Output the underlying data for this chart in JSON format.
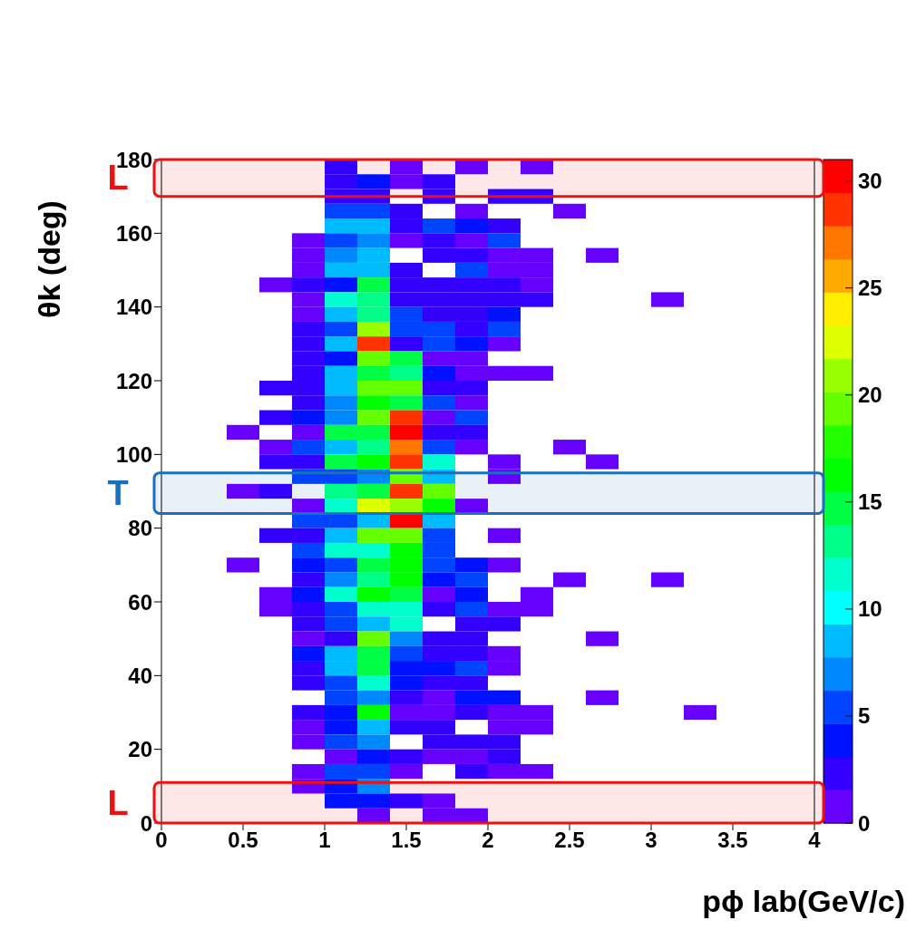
{
  "chart_data": {
    "type": "heatmap",
    "xlabel": "pϕ lab(GeV/c)",
    "ylabel": "θk (deg)",
    "xlim": [
      0,
      4
    ],
    "xticks": [
      0,
      {
        "value": 0.5,
        "label": "0.5"
      },
      1,
      {
        "value": 1.5,
        "label": "1.5"
      },
      2,
      {
        "value": 2.5,
        "label": "2.5"
      },
      3,
      {
        "value": 3.5,
        "label": "3.5"
      },
      4
    ],
    "ylim": [
      0,
      180
    ],
    "yticks": [
      0,
      20,
      40,
      60,
      80,
      100,
      120,
      140,
      160,
      180
    ],
    "clim": [
      0,
      31
    ],
    "cticks": [
      0,
      5,
      10,
      15,
      20,
      25,
      30
    ],
    "colors": [
      "#6600ff",
      "#3300ff",
      "#0011ff",
      "#0044ff",
      "#0088ff",
      "#00bbff",
      "#00ffff",
      "#00ffcc",
      "#00ff88",
      "#00ff44",
      "#00ff00",
      "#22ff00",
      "#66ff00",
      "#99ff00",
      "#ddff00",
      "#ffee00",
      "#ffaa00",
      "#ff7700",
      "#ff3300",
      "#ff0000"
    ],
    "bands": [
      {
        "axis": "y",
        "from": 170,
        "to": 180,
        "label": "L",
        "color": "#ee1111"
      },
      {
        "axis": "y",
        "from": 84,
        "to": 95,
        "label": "T",
        "color": "#1a6fbf"
      },
      {
        "axis": "y",
        "from": 0,
        "to": 11,
        "label": "L",
        "color": "#ee1111"
      }
    ],
    "cells": [
      [
        null,
        null,
        null,
        null,
        null,
        2,
        null,
        1,
        null,
        1,
        null,
        1,
        null,
        null,
        null,
        null,
        null,
        null,
        null,
        null
      ],
      [
        null,
        null,
        null,
        null,
        null,
        2,
        4,
        1,
        2,
        null,
        null,
        null,
        null,
        null,
        null,
        null,
        null,
        null,
        null,
        null
      ],
      [
        null,
        null,
        null,
        null,
        null,
        2,
        2,
        null,
        2,
        null,
        2,
        2,
        null,
        null,
        null,
        null,
        null,
        null,
        null,
        null
      ],
      [
        null,
        null,
        null,
        null,
        null,
        5,
        5,
        2,
        null,
        1,
        null,
        null,
        1,
        null,
        null,
        null,
        null,
        null,
        null,
        null
      ],
      [
        null,
        null,
        null,
        null,
        null,
        8,
        8,
        2,
        5,
        4,
        2,
        null,
        null,
        null,
        null,
        null,
        null,
        null,
        null,
        null
      ],
      [
        null,
        null,
        null,
        null,
        1,
        5,
        7,
        1,
        2,
        1,
        5,
        null,
        null,
        null,
        null,
        null,
        null,
        null,
        null,
        null
      ],
      [
        null,
        null,
        null,
        null,
        1,
        7,
        8,
        null,
        2,
        2,
        1,
        1,
        null,
        1,
        null,
        null,
        null,
        null,
        null,
        null
      ],
      [
        null,
        null,
        null,
        null,
        1,
        8,
        8,
        2,
        null,
        5,
        1,
        1,
        null,
        null,
        null,
        null,
        null,
        null,
        null,
        null
      ],
      [
        null,
        null,
        null,
        1,
        2,
        4,
        14,
        2,
        2,
        2,
        2,
        1,
        null,
        null,
        null,
        null,
        null,
        null,
        null,
        null
      ],
      [
        null,
        null,
        null,
        null,
        1,
        11,
        13,
        2,
        2,
        2,
        2,
        2,
        null,
        null,
        null,
        1,
        null,
        null,
        null,
        null
      ],
      [
        null,
        null,
        null,
        null,
        1,
        8,
        13,
        5,
        2,
        2,
        4,
        null,
        null,
        null,
        null,
        null,
        null,
        null,
        null,
        null
      ],
      [
        null,
        null,
        null,
        null,
        2,
        5,
        21,
        5,
        5,
        2,
        5,
        null,
        null,
        null,
        null,
        null,
        null,
        null,
        null,
        null
      ],
      [
        null,
        null,
        null,
        null,
        2,
        8,
        28,
        2,
        5,
        4,
        1,
        null,
        null,
        null,
        null,
        null,
        null,
        null,
        null,
        null
      ],
      [
        null,
        null,
        null,
        null,
        2,
        4,
        19,
        14,
        1,
        1,
        null,
        null,
        null,
        null,
        null,
        null,
        null,
        null,
        null,
        null
      ],
      [
        null,
        null,
        null,
        null,
        2,
        8,
        14,
        13,
        4,
        1,
        1,
        1,
        null,
        null,
        null,
        null,
        null,
        null,
        null,
        null
      ],
      [
        null,
        null,
        null,
        2,
        2,
        8,
        19,
        19,
        2,
        2,
        null,
        null,
        null,
        null,
        null,
        null,
        null,
        null,
        null,
        null
      ],
      [
        null,
        null,
        null,
        null,
        2,
        7,
        16,
        14,
        5,
        1,
        null,
        null,
        null,
        null,
        null,
        null,
        null,
        null,
        null,
        null
      ],
      [
        null,
        null,
        null,
        2,
        4,
        7,
        19,
        28,
        1,
        5,
        null,
        null,
        null,
        null,
        null,
        null,
        null,
        null,
        null,
        null
      ],
      [
        null,
        null,
        1,
        null,
        1,
        14,
        14,
        30,
        2,
        2,
        null,
        null,
        null,
        null,
        null,
        null,
        null,
        null,
        null,
        null
      ],
      [
        null,
        null,
        null,
        1,
        5,
        8,
        13,
        27,
        5,
        1,
        null,
        null,
        1,
        null,
        null,
        null,
        null,
        null,
        null,
        null
      ],
      [
        null,
        null,
        null,
        2,
        2,
        14,
        17,
        28,
        11,
        null,
        1,
        null,
        null,
        1,
        null,
        null,
        null,
        null,
        null,
        null
      ],
      [
        null,
        null,
        null,
        null,
        5,
        5,
        7,
        19,
        8,
        null,
        1,
        null,
        null,
        null,
        null,
        null,
        null,
        null,
        null,
        null
      ],
      [
        null,
        null,
        1,
        2,
        null,
        13,
        14,
        28,
        19,
        null,
        null,
        null,
        null,
        null,
        null,
        null,
        null,
        null,
        null,
        null
      ],
      [
        null,
        null,
        null,
        null,
        1,
        11,
        22,
        21,
        16,
        1,
        null,
        null,
        null,
        null,
        null,
        null,
        null,
        null,
        null,
        null
      ],
      [
        null,
        null,
        null,
        null,
        5,
        5,
        8,
        30,
        8,
        null,
        null,
        null,
        null,
        null,
        null,
        null,
        null,
        null,
        null,
        null
      ],
      [
        null,
        null,
        null,
        2,
        2,
        8,
        19,
        19,
        5,
        null,
        1,
        null,
        null,
        null,
        null,
        null,
        null,
        null,
        null,
        null
      ],
      [
        null,
        null,
        null,
        null,
        5,
        11,
        11,
        16,
        5,
        null,
        null,
        null,
        null,
        null,
        null,
        null,
        null,
        null,
        null,
        null
      ],
      [
        null,
        null,
        1,
        null,
        4,
        5,
        14,
        17,
        5,
        4,
        1,
        null,
        null,
        null,
        null,
        null,
        null,
        null,
        null,
        null
      ],
      [
        null,
        null,
        null,
        null,
        2,
        7,
        13,
        17,
        4,
        5,
        null,
        null,
        1,
        null,
        null,
        1,
        null,
        null,
        null,
        null
      ],
      [
        null,
        null,
        null,
        1,
        4,
        11,
        17,
        14,
        1,
        4,
        null,
        1,
        null,
        null,
        null,
        null,
        null,
        null,
        null,
        null
      ],
      [
        null,
        null,
        null,
        1,
        2,
        5,
        11,
        11,
        2,
        5,
        1,
        1,
        null,
        null,
        null,
        null,
        null,
        null,
        null,
        null
      ],
      [
        null,
        null,
        null,
        null,
        2,
        5,
        8,
        11,
        null,
        2,
        2,
        null,
        null,
        null,
        null,
        null,
        null,
        null,
        null,
        null
      ],
      [
        null,
        null,
        null,
        null,
        1,
        2,
        19,
        7,
        2,
        2,
        null,
        null,
        null,
        1,
        null,
        null,
        null,
        null,
        null,
        null
      ],
      [
        null,
        null,
        null,
        null,
        4,
        8,
        14,
        5,
        2,
        2,
        1,
        null,
        null,
        null,
        null,
        null,
        null,
        null,
        null,
        null
      ],
      [
        null,
        null,
        null,
        null,
        2,
        8,
        14,
        4,
        4,
        5,
        1,
        null,
        null,
        null,
        null,
        null,
        null,
        null,
        null,
        null
      ],
      [
        null,
        null,
        null,
        null,
        2,
        5,
        11,
        4,
        2,
        2,
        null,
        null,
        null,
        null,
        null,
        null,
        null,
        null,
        null,
        null
      ],
      [
        null,
        null,
        null,
        null,
        null,
        5,
        7,
        2,
        1,
        4,
        4,
        null,
        null,
        1,
        null,
        null,
        null,
        null,
        null,
        null
      ],
      [
        null,
        null,
        null,
        null,
        2,
        4,
        16,
        1,
        1,
        2,
        1,
        1,
        null,
        null,
        null,
        null,
        1,
        null,
        null,
        null
      ],
      [
        null,
        null,
        null,
        null,
        1,
        4,
        8,
        2,
        2,
        null,
        1,
        1,
        null,
        null,
        null,
        null,
        null,
        null,
        null,
        null
      ],
      [
        null,
        null,
        null,
        null,
        1,
        5,
        7,
        null,
        2,
        2,
        2,
        null,
        null,
        null,
        null,
        null,
        null,
        null,
        null,
        null
      ],
      [
        null,
        null,
        null,
        null,
        null,
        1,
        4,
        2,
        1,
        1,
        2,
        null,
        null,
        null,
        null,
        null,
        null,
        null,
        null,
        null
      ],
      [
        null,
        null,
        null,
        null,
        1,
        5,
        5,
        1,
        null,
        2,
        1,
        1,
        null,
        null,
        null,
        null,
        null,
        null,
        null,
        null
      ],
      [
        null,
        null,
        null,
        null,
        1,
        4,
        7,
        null,
        null,
        null,
        null,
        null,
        null,
        null,
        null,
        null,
        null,
        null,
        null,
        null
      ],
      [
        null,
        null,
        null,
        null,
        null,
        4,
        4,
        2,
        1,
        null,
        null,
        null,
        null,
        null,
        null,
        null,
        null,
        null,
        null,
        null
      ],
      [
        null,
        null,
        null,
        null,
        null,
        null,
        1,
        null,
        1,
        1,
        null,
        null,
        null,
        null,
        null,
        null,
        null,
        null,
        null,
        null
      ]
    ]
  }
}
